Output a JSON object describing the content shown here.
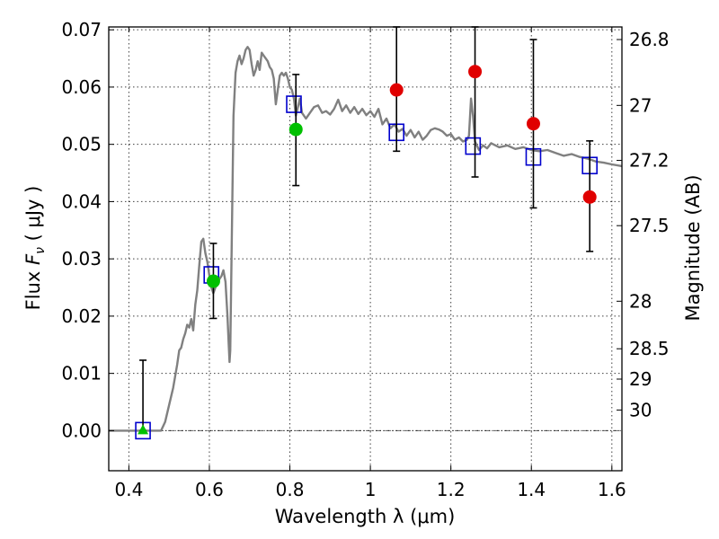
{
  "chart_data": {
    "type": "scatter",
    "xlabel": "Wavelength  λ (μm)",
    "ylabel": "Flux  F_ν  ( μJy )",
    "ylabel_parts": {
      "prefix": "Flux  ",
      "symbol": "F",
      "subscript": "ν",
      "suffix": "  ( μJy )"
    },
    "y2label": "Magnitude (AB)",
    "xlim": [
      0.35,
      1.625
    ],
    "ylim": [
      -0.007,
      0.0705
    ],
    "grid": true,
    "x_ticks": [
      {
        "value": 0.4,
        "label": "0.4"
      },
      {
        "value": 0.6,
        "label": "0.6"
      },
      {
        "value": 0.8,
        "label": "0.8"
      },
      {
        "value": 1.0,
        "label": "1"
      },
      {
        "value": 1.2,
        "label": "1.2"
      },
      {
        "value": 1.4,
        "label": "1.4"
      },
      {
        "value": 1.6,
        "label": "1.6"
      }
    ],
    "y_ticks": [
      {
        "value": 0.0,
        "label": "0.00"
      },
      {
        "value": 0.01,
        "label": "0.01"
      },
      {
        "value": 0.02,
        "label": "0.02"
      },
      {
        "value": 0.03,
        "label": "0.03"
      },
      {
        "value": 0.04,
        "label": "0.04"
      },
      {
        "value": 0.05,
        "label": "0.05"
      },
      {
        "value": 0.06,
        "label": "0.06"
      },
      {
        "value": 0.07,
        "label": "0.07"
      }
    ],
    "y2_ticks": [
      {
        "flux": 0.0683,
        "label": "26.8"
      },
      {
        "flux": 0.0568,
        "label": "27"
      },
      {
        "flux": 0.0472,
        "label": "27.2"
      },
      {
        "flux": 0.0358,
        "label": "27.5"
      },
      {
        "flux": 0.0226,
        "label": "28"
      },
      {
        "flux": 0.0143,
        "label": "28.5"
      },
      {
        "flux": 0.009,
        "label": "29"
      },
      {
        "flux": 0.0036,
        "label": "30"
      }
    ],
    "series": [
      {
        "kind": "line",
        "color": "#808080",
        "x": [
          0.35,
          0.48,
          0.49,
          0.5,
          0.51,
          0.52,
          0.525,
          0.53,
          0.535,
          0.54,
          0.545,
          0.55,
          0.555,
          0.56,
          0.565,
          0.57,
          0.575,
          0.58,
          0.585,
          0.59,
          0.595,
          0.6,
          0.605,
          0.61,
          0.615,
          0.62,
          0.625,
          0.63,
          0.635,
          0.64,
          0.645,
          0.648,
          0.65,
          0.652,
          0.655,
          0.66,
          0.665,
          0.67,
          0.675,
          0.68,
          0.685,
          0.69,
          0.695,
          0.7,
          0.705,
          0.71,
          0.715,
          0.72,
          0.725,
          0.73,
          0.735,
          0.74,
          0.745,
          0.75,
          0.755,
          0.76,
          0.765,
          0.77,
          0.775,
          0.78,
          0.785,
          0.79,
          0.795,
          0.8,
          0.805,
          0.81,
          0.815,
          0.82,
          0.825,
          0.83,
          0.84,
          0.85,
          0.86,
          0.87,
          0.88,
          0.89,
          0.9,
          0.91,
          0.92,
          0.93,
          0.94,
          0.95,
          0.96,
          0.97,
          0.98,
          0.99,
          1.0,
          1.01,
          1.02,
          1.03,
          1.04,
          1.05,
          1.06,
          1.07,
          1.08,
          1.09,
          1.1,
          1.11,
          1.12,
          1.13,
          1.14,
          1.15,
          1.16,
          1.17,
          1.18,
          1.19,
          1.2,
          1.21,
          1.22,
          1.23,
          1.24,
          1.245,
          1.25,
          1.255,
          1.26,
          1.27,
          1.28,
          1.29,
          1.3,
          1.32,
          1.34,
          1.36,
          1.38,
          1.4,
          1.42,
          1.44,
          1.46,
          1.48,
          1.5,
          1.52,
          1.54,
          1.56,
          1.58,
          1.6,
          1.625
        ],
        "y": [
          0.0,
          0.0,
          0.0015,
          0.0045,
          0.0075,
          0.0115,
          0.014,
          0.0145,
          0.016,
          0.017,
          0.0185,
          0.018,
          0.0195,
          0.0175,
          0.022,
          0.0245,
          0.029,
          0.033,
          0.0335,
          0.031,
          0.0295,
          0.027,
          0.025,
          0.024,
          0.025,
          0.026,
          0.0265,
          0.027,
          0.028,
          0.026,
          0.02,
          0.015,
          0.012,
          0.014,
          0.03,
          0.055,
          0.0625,
          0.0645,
          0.0655,
          0.064,
          0.065,
          0.0665,
          0.067,
          0.0665,
          0.064,
          0.062,
          0.063,
          0.0645,
          0.063,
          0.066,
          0.0655,
          0.065,
          0.0645,
          0.0635,
          0.063,
          0.0615,
          0.057,
          0.0595,
          0.062,
          0.0625,
          0.062,
          0.0625,
          0.0615,
          0.06,
          0.0595,
          0.058,
          0.055,
          0.0565,
          0.058,
          0.0555,
          0.0545,
          0.0555,
          0.0565,
          0.0568,
          0.0555,
          0.0558,
          0.0552,
          0.0562,
          0.0578,
          0.0558,
          0.0568,
          0.0555,
          0.0565,
          0.0553,
          0.0562,
          0.0551,
          0.0558,
          0.0548,
          0.0562,
          0.0535,
          0.0545,
          0.0528,
          0.0535,
          0.0522,
          0.0527,
          0.0515,
          0.0525,
          0.0512,
          0.0522,
          0.0508,
          0.0515,
          0.0525,
          0.0528,
          0.0526,
          0.0522,
          0.0515,
          0.0518,
          0.0508,
          0.0512,
          0.0505,
          0.0508,
          0.0515,
          0.058,
          0.055,
          0.0505,
          0.049,
          0.0498,
          0.0493,
          0.0502,
          0.0495,
          0.0498,
          0.0492,
          0.0495,
          0.049,
          0.0488,
          0.049,
          0.0485,
          0.048,
          0.0483,
          0.0478,
          0.0475,
          0.047,
          0.0468,
          0.0465,
          0.0462
        ]
      },
      {
        "kind": "model-points",
        "marker": "open-square",
        "color": "#0000cd",
        "x": [
          0.435,
          0.605,
          0.81,
          1.065,
          1.255,
          1.405,
          1.545
        ],
        "y": [
          0.0,
          0.0272,
          0.057,
          0.0521,
          0.0497,
          0.0478,
          0.0463
        ]
      },
      {
        "kind": "observed",
        "marker": "circle",
        "color": "#e00000",
        "x": [
          1.065,
          1.26,
          1.405,
          1.545
        ],
        "y": [
          0.0595,
          0.0627,
          0.0536,
          0.0408
        ],
        "yerr_low": [
          0.0488,
          0.0443,
          0.0389,
          0.0313
        ],
        "yerr_high": [
          0.0705,
          0.0705,
          0.0683,
          0.0506
        ]
      },
      {
        "kind": "observed",
        "marker": "circle",
        "color": "#00c000",
        "x": [
          0.61,
          0.815
        ],
        "y": [
          0.0261,
          0.0526
        ],
        "yerr_low": [
          0.0196,
          0.0428
        ],
        "yerr_high": [
          0.0327,
          0.0622
        ]
      },
      {
        "kind": "upper-limit",
        "marker": "triangle",
        "color": "#00c000",
        "x": [
          0.435
        ],
        "y": [
          0.0
        ],
        "yerr_low": [
          0.0
        ],
        "yerr_high": [
          0.0123
        ]
      }
    ]
  }
}
